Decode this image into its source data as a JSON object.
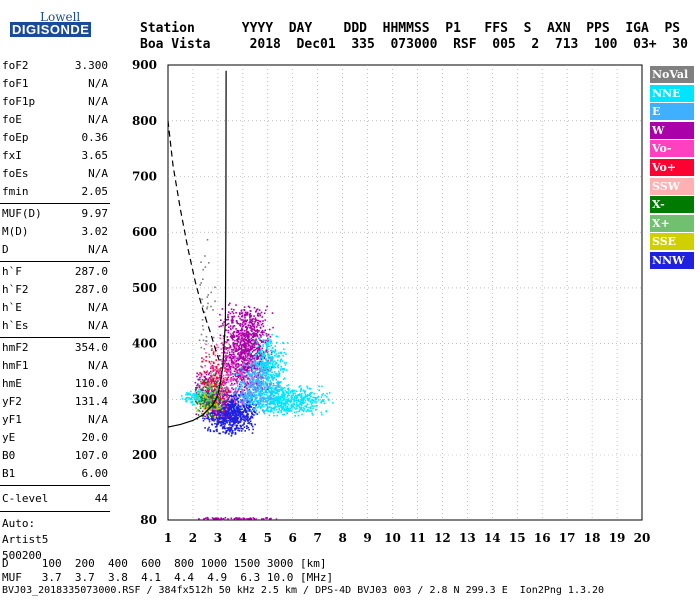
{
  "logo": {
    "line1": "Lowell",
    "line2": "DIGISONDE"
  },
  "header": {
    "labels": [
      "Station",
      "YYYY",
      "DAY",
      "DDD",
      "HHMMSS",
      "P1",
      "FFS",
      "S",
      "AXN",
      "PPS",
      "IGA",
      "PS"
    ],
    "values": [
      "Boa Vista",
      "2018",
      "Dec01",
      "335",
      "073000",
      "RSF",
      "005",
      "2",
      "713",
      "100",
      "03+",
      "30"
    ]
  },
  "params_group1": [
    {
      "label": "foF2",
      "value": "3.300"
    },
    {
      "label": "foF1",
      "value": "N/A"
    },
    {
      "label": "foF1p",
      "value": "N/A"
    },
    {
      "label": "foE",
      "value": "N/A"
    },
    {
      "label": "foEp",
      "value": "0.36"
    },
    {
      "label": "fxI",
      "value": "3.65"
    },
    {
      "label": "foEs",
      "value": "N/A"
    },
    {
      "label": "fmin",
      "value": "2.05"
    }
  ],
  "params_group2": [
    {
      "label": "MUF(D)",
      "value": "9.97"
    },
    {
      "label": "M(D)",
      "value": "3.02"
    },
    {
      "label": "D",
      "value": "N/A"
    }
  ],
  "params_group3": [
    {
      "label": "h`F",
      "value": "287.0"
    },
    {
      "label": "h`F2",
      "value": "287.0"
    },
    {
      "label": "h`E",
      "value": "N/A"
    },
    {
      "label": "h`Es",
      "value": "N/A"
    }
  ],
  "params_group4": [
    {
      "label": "hmF2",
      "value": "354.0"
    },
    {
      "label": "hmF1",
      "value": "N/A"
    },
    {
      "label": "hmE",
      "value": "110.0"
    },
    {
      "label": "yF2",
      "value": "131.4"
    },
    {
      "label": "yF1",
      "value": "N/A"
    },
    {
      "label": "yE",
      "value": "20.0"
    },
    {
      "label": "B0",
      "value": "107.0"
    },
    {
      "label": "B1",
      "value": "6.00"
    }
  ],
  "c_level": {
    "label": "C-level",
    "value": "44"
  },
  "autoscale": [
    "Auto:",
    "Artist5",
    "500200"
  ],
  "legend": [
    {
      "label": "NoVal",
      "color": "#808080"
    },
    {
      "label": "NNE",
      "color": "#00e5ff"
    },
    {
      "label": "E",
      "color": "#3fb0ff"
    },
    {
      "label": "W",
      "color": "#aa00aa"
    },
    {
      "label": "Vo-",
      "color": "#ff40c0"
    },
    {
      "label": "Vo+",
      "color": "#ff0030"
    },
    {
      "label": "SSW",
      "color": "#ffb0b0"
    },
    {
      "label": "X-",
      "color": "#007a00"
    },
    {
      "label": "X+",
      "color": "#70c070"
    },
    {
      "label": "SSE",
      "color": "#d0d000"
    },
    {
      "label": "NNW",
      "color": "#2020e0"
    }
  ],
  "bottom": {
    "d_row": "D     100  200  400  600  800 1000 1500 3000 [km]",
    "muf_row": "MUF   3.7  3.7  3.8  4.1  4.4  4.9  6.3 10.0 [MHz]",
    "footer": "BVJ03_2018335073000.RSF / 384fx512h 50 kHz 2.5 km / DPS-4D BVJ03 003 / 2.8 N 299.3 E  Ion2Png 1.3.20"
  },
  "chart_data": {
    "type": "scatter",
    "xlim": [
      1,
      20
    ],
    "ylim": [
      80,
      900
    ],
    "x_ticks": [
      1,
      2,
      3,
      4,
      5,
      6,
      7,
      8,
      9,
      10,
      11,
      12,
      13,
      14,
      15,
      16,
      17,
      18,
      19,
      20
    ],
    "y_ticks": [
      80,
      200,
      300,
      400,
      500,
      600,
      700,
      800,
      900
    ],
    "grid": true,
    "xlabel": "",
    "ylabel": "",
    "series": [
      {
        "color_index": 10,
        "clusters": [
          {
            "x": [
              2.3,
              4.6
            ],
            "y": [
              235,
              320
            ],
            "n": 900
          }
        ]
      },
      {
        "color_index": 3,
        "clusters": [
          {
            "x": [
              3.0,
              5.2
            ],
            "y": [
              300,
              480
            ],
            "n": 1100
          },
          {
            "x": [
              2.0,
              3.5
            ],
            "y": [
              260,
              360
            ],
            "n": 300
          }
        ]
      },
      {
        "color_index": 1,
        "clusters": [
          {
            "x": [
              3.8,
              7.6
            ],
            "y": [
              270,
              330
            ],
            "n": 600
          },
          {
            "x": [
              4.2,
              5.8
            ],
            "y": [
              300,
              420
            ],
            "n": 350
          },
          {
            "x": [
              1.5,
              3.0
            ],
            "y": [
              290,
              320
            ],
            "n": 150
          }
        ]
      },
      {
        "color_index": 2,
        "clusters": [
          {
            "x": [
              3.5,
              5.5
            ],
            "y": [
              270,
              380
            ],
            "n": 350
          }
        ]
      },
      {
        "color_index": 4,
        "clusters": [
          {
            "x": [
              2.2,
              4.5
            ],
            "y": [
              280,
              420
            ],
            "n": 200
          }
        ]
      },
      {
        "color_index": 5,
        "clusters": [
          {
            "x": [
              2.2,
              3.5
            ],
            "y": [
              270,
              400
            ],
            "n": 120
          }
        ]
      },
      {
        "color_index": 7,
        "clusters": [
          {
            "x": [
              2.0,
              3.2
            ],
            "y": [
              260,
              340
            ],
            "n": 100
          }
        ]
      },
      {
        "color_index": 8,
        "clusters": [
          {
            "x": [
              2.0,
              3.5
            ],
            "y": [
              260,
              360
            ],
            "n": 80
          }
        ]
      },
      {
        "color_index": 9,
        "clusters": [
          {
            "x": [
              2.0,
              3.5
            ],
            "y": [
              265,
              330
            ],
            "n": 50
          }
        ]
      },
      {
        "color_index": 0,
        "clusters": [
          {
            "x": [
              2.1,
              3.0
            ],
            "y": [
              330,
              620
            ],
            "n": 40
          }
        ]
      },
      {
        "color_index": 3,
        "clusters": [
          {
            "x": [
              1.9,
              5.5
            ],
            "y": [
              82,
              86
            ],
            "n": 70
          }
        ]
      }
    ],
    "profile_solid": {
      "x": [
        1.0,
        1.5,
        2.0,
        2.4,
        2.8,
        3.0,
        3.1,
        3.2,
        3.3,
        3.32,
        3.33
      ],
      "y": [
        250,
        255,
        262,
        272,
        290,
        308,
        330,
        360,
        440,
        600,
        890
      ]
    },
    "profile_dashed": {
      "x": [
        1.0,
        1.2,
        1.5,
        1.8,
        2.1,
        2.4,
        2.7,
        2.9,
        3.05
      ],
      "y": [
        800,
        720,
        640,
        570,
        510,
        460,
        420,
        390,
        370
      ]
    }
  }
}
